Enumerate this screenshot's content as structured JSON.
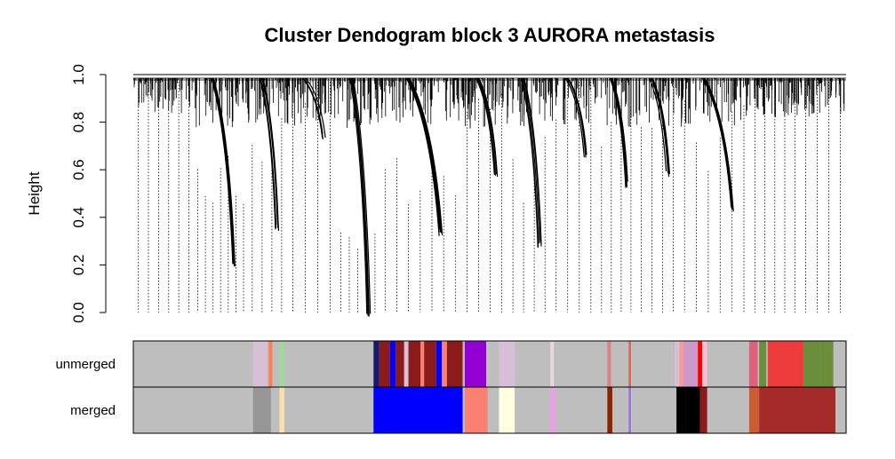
{
  "chart_data": {
    "type": "dendrogram",
    "title": "Cluster Dendogram block 3 AURORA metastasis",
    "ylabel": "Height",
    "ylim": [
      0,
      1
    ],
    "yticks": [
      "0.0",
      "0.2",
      "0.4",
      "0.6",
      "0.8",
      "1.0"
    ],
    "ytick_values": [
      0,
      0.2,
      0.4,
      0.6,
      0.8,
      1.0
    ],
    "leaf_stick_bottom": 0.0,
    "clusters": [
      {
        "start": 0.0,
        "end": 0.085,
        "min": 0.82,
        "count": 6
      },
      {
        "start": 0.085,
        "end": 0.16,
        "min": 0.22,
        "count": 7
      },
      {
        "start": 0.16,
        "end": 0.215,
        "min": 0.37,
        "count": 4
      },
      {
        "start": 0.215,
        "end": 0.285,
        "min": 0.75,
        "count": 4
      },
      {
        "start": 0.285,
        "end": 0.345,
        "min": 0.0,
        "count": 5
      },
      {
        "start": 0.345,
        "end": 0.46,
        "min": 0.35,
        "count": 7
      },
      {
        "start": 0.46,
        "end": 0.525,
        "min": 0.6,
        "count": 4
      },
      {
        "start": 0.525,
        "end": 0.585,
        "min": 0.3,
        "count": 4
      },
      {
        "start": 0.585,
        "end": 0.65,
        "min": 0.68,
        "count": 4
      },
      {
        "start": 0.65,
        "end": 0.705,
        "min": 0.55,
        "count": 4
      },
      {
        "start": 0.705,
        "end": 0.765,
        "min": 0.6,
        "count": 4
      },
      {
        "start": 0.765,
        "end": 0.865,
        "min": 0.45,
        "count": 6
      },
      {
        "start": 0.865,
        "end": 0.935,
        "min": 0.8,
        "count": 5
      },
      {
        "start": 0.935,
        "end": 1.0,
        "min": 0.8,
        "count": 4
      }
    ],
    "color_rows": [
      {
        "label": "unmerged",
        "base": "#bebebe",
        "segments": [
          {
            "start": 0.168,
            "end": 0.188,
            "color": "#d8bfd8"
          },
          {
            "start": 0.19,
            "end": 0.195,
            "color": "#ff7f50"
          },
          {
            "start": 0.205,
            "end": 0.212,
            "color": "#a1d99b"
          },
          {
            "start": 0.337,
            "end": 0.345,
            "color": "#191970"
          },
          {
            "start": 0.345,
            "end": 0.36,
            "color": "#8b1a1a"
          },
          {
            "start": 0.36,
            "end": 0.368,
            "color": "#0000ff"
          },
          {
            "start": 0.368,
            "end": 0.38,
            "color": "#8b1a1a"
          },
          {
            "start": 0.38,
            "end": 0.386,
            "color": "#d8bfd8"
          },
          {
            "start": 0.386,
            "end": 0.403,
            "color": "#8b1a1a"
          },
          {
            "start": 0.403,
            "end": 0.408,
            "color": "#fa8072"
          },
          {
            "start": 0.408,
            "end": 0.425,
            "color": "#8b1a1a"
          },
          {
            "start": 0.425,
            "end": 0.433,
            "color": "#0000ff"
          },
          {
            "start": 0.433,
            "end": 0.44,
            "color": "#fa8072"
          },
          {
            "start": 0.44,
            "end": 0.462,
            "color": "#8b1a1a"
          },
          {
            "start": 0.465,
            "end": 0.495,
            "color": "#9400d3"
          },
          {
            "start": 0.513,
            "end": 0.535,
            "color": "#d8bfd8"
          },
          {
            "start": 0.585,
            "end": 0.59,
            "color": "#ead5dc"
          },
          {
            "start": 0.665,
            "end": 0.67,
            "color": "#e08080"
          },
          {
            "start": 0.695,
            "end": 0.698,
            "color": "#e06050"
          },
          {
            "start": 0.76,
            "end": 0.766,
            "color": "#d8bfd8"
          },
          {
            "start": 0.766,
            "end": 0.772,
            "color": "#ff9999"
          },
          {
            "start": 0.772,
            "end": 0.792,
            "color": "#cc99cc"
          },
          {
            "start": 0.792,
            "end": 0.798,
            "color": "#ff0000"
          },
          {
            "start": 0.798,
            "end": 0.805,
            "color": "#ffc0cb"
          },
          {
            "start": 0.864,
            "end": 0.876,
            "color": "#e0607e"
          },
          {
            "start": 0.878,
            "end": 0.888,
            "color": "#6b8e3d"
          },
          {
            "start": 0.89,
            "end": 0.94,
            "color": "#ee3b3b"
          },
          {
            "start": 0.94,
            "end": 0.965,
            "color": "#6b8e3d"
          },
          {
            "start": 0.965,
            "end": 0.982,
            "color": "#6b8e3d"
          }
        ]
      },
      {
        "label": "merged",
        "base": "#bebebe",
        "segments": [
          {
            "start": 0.168,
            "end": 0.193,
            "color": "#969696"
          },
          {
            "start": 0.205,
            "end": 0.212,
            "color": "#ffdead"
          },
          {
            "start": 0.337,
            "end": 0.462,
            "color": "#0000ff"
          },
          {
            "start": 0.465,
            "end": 0.497,
            "color": "#fa8072"
          },
          {
            "start": 0.513,
            "end": 0.535,
            "color": "#ffffe0"
          },
          {
            "start": 0.585,
            "end": 0.592,
            "color": "#ee9ee8"
          },
          {
            "start": 0.665,
            "end": 0.672,
            "color": "#8b2500"
          },
          {
            "start": 0.695,
            "end": 0.698,
            "color": "#9370db"
          },
          {
            "start": 0.762,
            "end": 0.775,
            "color": "#000000"
          },
          {
            "start": 0.775,
            "end": 0.795,
            "color": "#000000"
          },
          {
            "start": 0.795,
            "end": 0.805,
            "color": "#8b1a1a"
          },
          {
            "start": 0.864,
            "end": 0.878,
            "color": "#cd5c32"
          },
          {
            "start": 0.878,
            "end": 0.985,
            "color": "#a52a2a"
          }
        ]
      }
    ]
  }
}
